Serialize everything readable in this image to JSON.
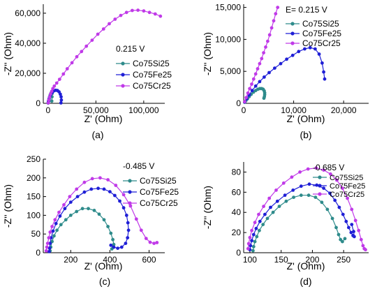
{
  "colors": {
    "Co75Si25": "#2e8b8b",
    "Co75Fe25": "#1f1fd6",
    "Co75Cr25": "#c03ae8",
    "axis": "#000000"
  },
  "chart_data": [
    {
      "type": "scatter",
      "panel_label": "(a)",
      "annotation": "0.215 V",
      "xlabel": "Z' (Ohm)",
      "ylabel": "-Z'' (Ohm)",
      "xlim": [
        -5000,
        122000
      ],
      "ylim": [
        0,
        66000
      ],
      "xticks": [
        0,
        50000,
        100000
      ],
      "xtick_labels": [
        "0",
        "50,000",
        "100,000"
      ],
      "yticks": [
        0,
        20000,
        40000,
        60000
      ],
      "ytick_labels": [
        "0",
        "20,000",
        "40,000",
        "60,000"
      ],
      "legend": [
        "Co75Si25",
        "Co75Fe25",
        "Co75Cr25"
      ],
      "series": [
        {
          "name": "Co75Si25",
          "x": [
            100,
            400,
            900,
            1500,
            2200,
            3000,
            3600,
            4000,
            4200,
            4100,
            3900
          ],
          "y": [
            200,
            1200,
            2700,
            4200,
            5600,
            6700,
            7200,
            7400,
            6500,
            4300,
            1500
          ]
        },
        {
          "name": "Co75Fe25",
          "x": [
            100,
            500,
            1100,
            2000,
            3200,
            4600,
            6200,
            8000,
            9800,
            11500,
            12800,
            13600,
            13900,
            13500
          ],
          "y": [
            300,
            1500,
            3000,
            4600,
            6200,
            7500,
            8300,
            8700,
            8500,
            7600,
            6100,
            4300,
            2200,
            300
          ]
        },
        {
          "name": "Co75Cr25",
          "x": [
            200,
            800,
            1600,
            2600,
            3800,
            5000,
            6500,
            9000,
            12000,
            16000,
            20000,
            25000,
            30000,
            35000,
            40000,
            46000,
            52000,
            58000,
            64000,
            70000,
            76000,
            82000,
            88000,
            94000,
            100000,
            106000,
            112000,
            117500
          ],
          "y": [
            300,
            2200,
            4200,
            6200,
            8000,
            9800,
            11500,
            13500,
            16000,
            19500,
            23000,
            27000,
            31000,
            34500,
            38000,
            42000,
            46000,
            49500,
            53000,
            56000,
            58500,
            60500,
            61800,
            62000,
            61500,
            60500,
            59500,
            58000
          ]
        }
      ]
    },
    {
      "type": "scatter",
      "panel_label": "(b)",
      "annotation": "E= 0.215 V",
      "xlabel": "Z' (Ohm)",
      "ylabel": "-Z'' (Ohm)",
      "xlim": [
        0,
        25000
      ],
      "ylim": [
        0,
        15500
      ],
      "xticks": [
        0,
        10000,
        20000
      ],
      "xtick_labels": [
        "0",
        "10,000",
        "20,000"
      ],
      "yticks": [
        0,
        5000,
        10000,
        15000
      ],
      "ytick_labels": [
        "0",
        "5,000",
        "10,000",
        "15,000"
      ],
      "legend": [
        "Co75Si25",
        "Co75Fe25",
        "Co75Cr25"
      ],
      "series": [
        {
          "name": "Co75Si25",
          "x": [
            200,
            450,
            750,
            1100,
            1500,
            1950,
            2400,
            2850,
            3250,
            3600,
            3900,
            4100,
            4200,
            4200,
            4150,
            4050
          ],
          "y": [
            150,
            400,
            700,
            1050,
            1400,
            1750,
            2000,
            2200,
            2300,
            2300,
            2200,
            1950,
            1650,
            1350,
            1050,
            800
          ]
        },
        {
          "name": "Co75Fe25",
          "x": [
            200,
            600,
            1100,
            1700,
            2400,
            3200,
            4100,
            5100,
            6200,
            7400,
            8600,
            9800,
            11000,
            12200,
            13300,
            14300,
            15100,
            15700,
            16000,
            16200
          ],
          "y": [
            200,
            700,
            1300,
            2000,
            2700,
            3400,
            4100,
            4800,
            5500,
            6200,
            6900,
            7500,
            8100,
            8500,
            8700,
            8500,
            7700,
            6300,
            4900,
            3800
          ]
        },
        {
          "name": "Co75Cr25",
          "x": [
            200,
            500,
            850,
            1200,
            1600,
            2000,
            2400,
            2800,
            3200,
            3600,
            4000,
            4400,
            4800,
            5200,
            5600,
            6000,
            6400,
            6800
          ],
          "y": [
            250,
            900,
            1600,
            2300,
            3000,
            3800,
            4600,
            5400,
            6200,
            7000,
            7900,
            8800,
            9700,
            10700,
            11800,
            12900,
            14000,
            15000
          ]
        }
      ]
    },
    {
      "type": "scatter",
      "panel_label": "(c)",
      "annotation": "-0.485 V",
      "xlabel": "Z' (Ohm)",
      "ylabel": "-Z'' (Ohm)",
      "xlim": [
        60,
        680
      ],
      "ylim": [
        0,
        250
      ],
      "xticks": [
        200,
        400,
        600
      ],
      "xtick_labels": [
        "200",
        "400",
        "600"
      ],
      "yticks": [
        0,
        50,
        100,
        150,
        200,
        250
      ],
      "ytick_labels": [
        "0",
        "50",
        "100",
        "150",
        "200",
        "250"
      ],
      "legend": [
        "Co75Si25",
        "Co75Fe25",
        "Co75Cr25"
      ],
      "series": [
        {
          "name": "Co75Si25",
          "x": [
            95,
            98,
            105,
            115,
            130,
            150,
            175,
            200,
            230,
            260,
            290,
            320,
            345,
            370,
            390,
            405,
            415,
            420,
            418,
            410
          ],
          "y": [
            5,
            15,
            30,
            45,
            60,
            75,
            88,
            100,
            110,
            118,
            118,
            113,
            103,
            88,
            70,
            52,
            35,
            22,
            15,
            10
          ]
        },
        {
          "name": "Co75Fe25",
          "x": [
            90,
            92,
            95,
            100,
            110,
            125,
            145,
            170,
            200,
            235,
            270,
            305,
            340,
            370,
            400,
            425,
            450,
            470,
            485,
            492,
            495,
            490,
            480,
            460,
            440,
            420,
            405
          ],
          "y": [
            3,
            12,
            25,
            40,
            58,
            78,
            98,
            118,
            135,
            150,
            162,
            170,
            172,
            170,
            163,
            153,
            138,
            120,
            100,
            80,
            60,
            40,
            25,
            15,
            12,
            15,
            20
          ]
        },
        {
          "name": "Co75Cr25",
          "x": [
            75,
            78,
            82,
            88,
            95,
            105,
            120,
            140,
            165,
            195,
            230,
            270,
            310,
            350,
            390,
            430,
            470,
            505,
            535,
            560,
            585,
            605,
            625,
            640
          ],
          "y": [
            5,
            15,
            25,
            40,
            55,
            70,
            88,
            108,
            128,
            150,
            170,
            188,
            198,
            200,
            195,
            180,
            155,
            125,
            90,
            60,
            38,
            28,
            25,
            27
          ]
        }
      ]
    },
    {
      "type": "scatter",
      "panel_label": "(d)",
      "annotation": "-0.685 V",
      "xlabel": "Z' (Ohm)",
      "ylabel": "-Z'' (Ohm)",
      "xlim": [
        90,
        290
      ],
      "ylim": [
        0,
        90
      ],
      "xticks": [
        100,
        150,
        200,
        250
      ],
      "xtick_labels": [
        "100",
        "150",
        "200",
        "250"
      ],
      "yticks": [
        0,
        20,
        40,
        60,
        80
      ],
      "ytick_labels": [
        "0",
        "20",
        "40",
        "60",
        "80"
      ],
      "legend": [
        "Co75Si25",
        "Co75Fe25",
        "Co75Cr25"
      ],
      "series": [
        {
          "name": "Co75Si25",
          "x": [
            105,
            106,
            108,
            111,
            115,
            121,
            128,
            137,
            147,
            158,
            170,
            182,
            194,
            205,
            215,
            224,
            232,
            238,
            242,
            245,
            248,
            252
          ],
          "y": [
            2,
            6,
            11,
            16,
            22,
            28,
            34,
            40,
            46,
            51,
            55,
            57,
            57,
            55,
            50,
            43,
            34,
            25,
            18,
            13,
            11,
            14
          ]
        },
        {
          "name": "Co75Fe25",
          "x": [
            100,
            101,
            103,
            106,
            110,
            116,
            124,
            133,
            144,
            156,
            169,
            182,
            195,
            207,
            218,
            228,
            236,
            243,
            249,
            254,
            258,
            262,
            265,
            267,
            266,
            263
          ],
          "y": [
            3,
            7,
            12,
            18,
            24,
            31,
            38,
            45,
            51,
            57,
            62,
            66,
            68,
            67,
            64,
            59,
            52,
            45,
            38,
            31,
            25,
            20,
            17,
            16,
            21,
            28
          ]
        },
        {
          "name": "Co75Cr25",
          "x": [
            97,
            98,
            100,
            103,
            108,
            114,
            122,
            131,
            142,
            154,
            167,
            180,
            193,
            206,
            218,
            229,
            239,
            248,
            256,
            263,
            269,
            274,
            278,
            281,
            283,
            285
          ],
          "y": [
            4,
            9,
            15,
            22,
            30,
            38,
            46,
            54,
            62,
            69,
            75,
            80,
            83,
            84,
            82,
            78,
            72,
            64,
            54,
            43,
            32,
            22,
            13,
            7,
            4,
            3
          ]
        }
      ]
    }
  ]
}
